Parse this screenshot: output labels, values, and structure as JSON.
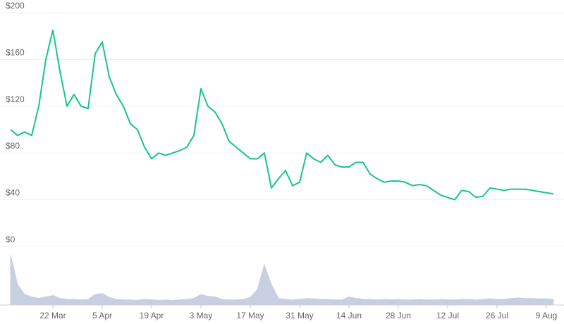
{
  "chart_data": [
    {
      "type": "line",
      "categories": [
        null,
        null,
        null,
        null,
        null,
        null,
        "22 Mar",
        null,
        null,
        null,
        null,
        null,
        null,
        "5 Apr",
        null,
        null,
        null,
        null,
        null,
        null,
        "19 Apr",
        null,
        null,
        null,
        null,
        null,
        null,
        "3 May",
        null,
        null,
        null,
        null,
        null,
        null,
        "17 May",
        null,
        null,
        null,
        null,
        null,
        null,
        "31 May",
        null,
        null,
        null,
        null,
        null,
        null,
        "14 Jun",
        null,
        null,
        null,
        null,
        null,
        null,
        "28 Jun",
        null,
        null,
        null,
        null,
        null,
        null,
        "12 Jul",
        null,
        null,
        null,
        null,
        null,
        null,
        "26 Jul",
        null,
        null,
        null,
        null,
        null,
        null,
        "9 Aug",
        null
      ],
      "values": [
        100,
        95,
        98,
        95,
        120,
        160,
        185,
        150,
        120,
        130,
        120,
        118,
        165,
        175,
        145,
        130,
        120,
        105,
        100,
        85,
        75,
        80,
        78,
        80,
        82,
        85,
        95,
        135,
        120,
        115,
        105,
        90,
        85,
        80,
        75,
        75,
        80,
        50,
        58,
        65,
        52,
        55,
        80,
        75,
        72,
        78,
        70,
        68,
        68,
        72,
        72,
        62,
        58,
        55,
        56,
        56,
        55,
        52,
        53,
        52,
        48,
        44,
        42,
        40,
        48,
        47,
        42,
        43,
        50,
        49,
        48,
        49,
        49,
        49,
        48,
        47,
        46,
        45
      ],
      "color": "#16c784",
      "ylim": [
        0,
        200
      ],
      "yticks": [
        {
          "value": 0,
          "label": "$0"
        },
        {
          "value": 40,
          "label": "$40"
        },
        {
          "value": 80,
          "label": "$80"
        },
        {
          "value": 120,
          "label": "$120"
        },
        {
          "value": 160,
          "label": "$160"
        },
        {
          "value": 200,
          "label": "$200"
        }
      ],
      "grid": true
    },
    {
      "type": "area",
      "values": [
        100,
        40,
        20,
        15,
        12,
        15,
        18,
        12,
        10,
        10,
        9,
        10,
        20,
        22,
        14,
        10,
        9,
        9,
        8,
        10,
        9,
        8,
        9,
        8,
        9,
        10,
        12,
        20,
        16,
        15,
        10,
        9,
        9,
        10,
        14,
        30,
        80,
        40,
        12,
        10,
        9,
        10,
        12,
        11,
        10,
        10,
        9,
        9,
        15,
        12,
        10,
        10,
        9,
        10,
        9,
        10,
        9,
        9,
        10,
        9,
        9,
        10,
        9,
        9,
        10,
        10,
        9,
        10,
        11,
        10,
        10,
        12,
        13,
        12,
        12,
        11,
        11,
        10
      ],
      "color": "#c9cfe2",
      "ylim": [
        0,
        100
      ]
    }
  ]
}
